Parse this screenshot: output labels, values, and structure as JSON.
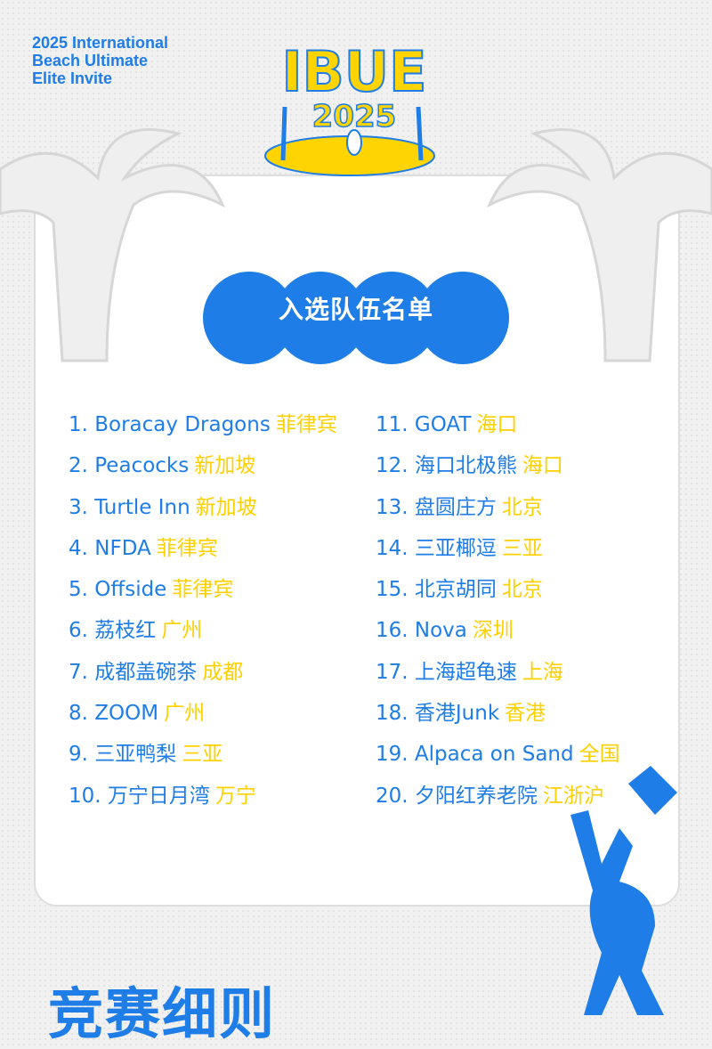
{
  "header": {
    "subtitle_lines": [
      "2025 International",
      "Beach Ultimate",
      "Elite Invite"
    ],
    "logo_text": "IBUE",
    "logo_year": "2025"
  },
  "section_title": "入选队伍名单",
  "colors": {
    "blue": "#1e7de6",
    "yellow": "#ffd000",
    "background": "#f1f1f1"
  },
  "teams_left": [
    {
      "label": "1. Boracay Dragons",
      "city": "菲律宾"
    },
    {
      "label": "2. Peacocks",
      "city": "新加坡"
    },
    {
      "label": "3. Turtle Inn",
      "city": "新加坡"
    },
    {
      "label": "4. NFDA",
      "city": "菲律宾"
    },
    {
      "label": "5. Offside",
      "city": "菲律宾"
    },
    {
      "label": "6. 荔枝红",
      "city": "广州"
    },
    {
      "label": "7. 成都盖碗茶",
      "city": "成都"
    },
    {
      "label": "8. ZOOM",
      "city": "广州"
    },
    {
      "label": "9. 三亚鸭梨",
      "city": "三亚"
    },
    {
      "label": "10. 万宁日月湾",
      "city": "万宁"
    }
  ],
  "teams_right": [
    {
      "label": "11. GOAT",
      "city": "海口"
    },
    {
      "label": "12. 海口北极熊",
      "city": "海口"
    },
    {
      "label": "13. 盘圆庄方",
      "city": "北京"
    },
    {
      "label": "14. 三亚椰逗",
      "city": "三亚"
    },
    {
      "label": "15. 北京胡同",
      "city": "北京"
    },
    {
      "label": "16. Nova",
      "city": "深圳"
    },
    {
      "label": "17. 上海超龟速",
      "city": "上海"
    },
    {
      "label": "18. 香港Junk",
      "city": "香港"
    },
    {
      "label": "19. Alpaca on Sand",
      "city": "全国"
    },
    {
      "label": "20. 夕阳红养老院",
      "city": "江浙沪"
    }
  ],
  "footer_title": "竞赛细则"
}
